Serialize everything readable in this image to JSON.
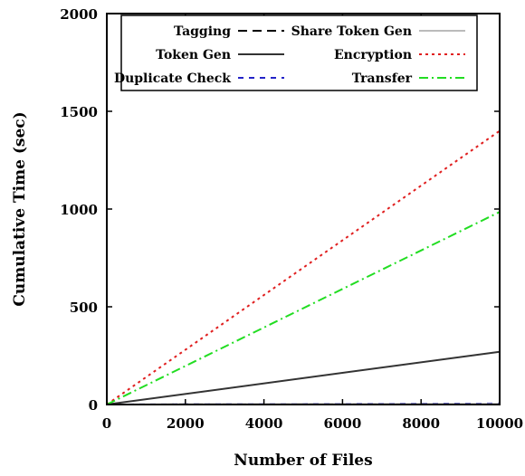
{
  "chart_data": {
    "type": "line",
    "xlabel": "Number of Files",
    "ylabel": "Cumulative Time (sec)",
    "xlim": [
      0,
      10000
    ],
    "ylim": [
      0,
      2000
    ],
    "x_ticks": [
      0,
      2000,
      4000,
      6000,
      8000,
      10000
    ],
    "y_ticks": [
      0,
      500,
      1000,
      1500,
      2000
    ],
    "x_tick_labels": [
      "0",
      "2000",
      "4000",
      "6000",
      "8000",
      "10000"
    ],
    "y_tick_labels": [
      "0",
      "500",
      "1000",
      "1500",
      "2000"
    ],
    "grid": false,
    "legend_position": "top",
    "series": [
      {
        "name": "Tagging",
        "x": [
          0,
          10000
        ],
        "y": [
          0,
          2
        ],
        "color": "#000000",
        "dash": "long-dash"
      },
      {
        "name": "Token Gen",
        "x": [
          0,
          10000
        ],
        "y": [
          0,
          270
        ],
        "color": "#333333",
        "dash": "solid"
      },
      {
        "name": "Duplicate Check",
        "x": [
          0,
          10000
        ],
        "y": [
          0,
          5
        ],
        "color": "#2323c8",
        "dash": "dash"
      },
      {
        "name": "Share Token Gen",
        "x": [
          0,
          10000
        ],
        "y": [
          0,
          3
        ],
        "color": "#bbbbbb",
        "dash": "solid"
      },
      {
        "name": "Encryption",
        "x": [
          0,
          10000
        ],
        "y": [
          0,
          1400
        ],
        "color": "#e01e1e",
        "dash": "dot"
      },
      {
        "name": "Transfer",
        "x": [
          0,
          10000
        ],
        "y": [
          0,
          985
        ],
        "color": "#22dd22",
        "dash": "dash-dot"
      }
    ]
  }
}
